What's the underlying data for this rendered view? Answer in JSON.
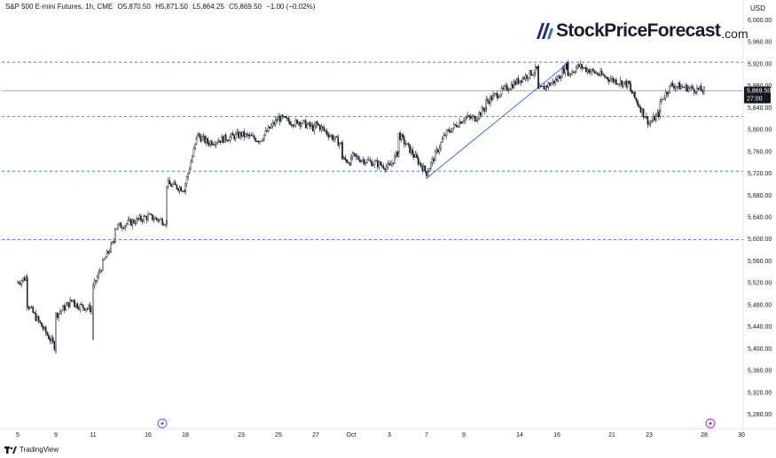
{
  "header": {
    "symbol": "S&P 500 E-mini Futures, 1h, CME",
    "open": "O5,870.50",
    "high": "H5,871.50",
    "low": "L5,864.25",
    "close": "C5,869.50",
    "change": "−1.00 (−0.02%)"
  },
  "brand": {
    "name": "StockPriceForecast",
    "domain": ".com"
  },
  "footer": {
    "brand": "TradingView"
  },
  "colors": {
    "candle": "#131722",
    "hline": "#2962ff",
    "trendline": "#2962ff",
    "price_tag": "#131722",
    "last_line": "#9598a1"
  },
  "icons": {
    "event_1": "lightning-event-icon",
    "event_2": "lightning-event-icon"
  },
  "chart_data": {
    "type": "line",
    "currency": "USD",
    "ylim": [
      5260,
      6020
    ],
    "y_ticks": [
      "6,000.00",
      "5,960.00",
      "5,920.00",
      "5,880.00",
      "5,840.00",
      "5,800.00",
      "5,760.00",
      "5,720.00",
      "5,680.00",
      "5,640.00",
      "5,600.00",
      "5,560.00",
      "5,520.00",
      "5,480.00",
      "5,440.00",
      "5,400.00",
      "5,360.00",
      "5,320.00",
      "5,280.00"
    ],
    "x_ticks": [
      "5",
      "9",
      "11",
      "16",
      "18",
      "23",
      "25",
      "27",
      "Oct",
      "3",
      "7",
      "9",
      "14",
      "16",
      "21",
      "23",
      "28",
      "30"
    ],
    "price_tag": {
      "value": "5,869.50",
      "countdown": "27:00",
      "price": 5869.5
    },
    "horizontal_levels": [
      5922,
      5823,
      5723,
      5598
    ],
    "trendline": {
      "from": {
        "x": "Oct 7",
        "y": 5710
      },
      "to": {
        "x": "Oct 17",
        "y": 5920
      }
    },
    "series": [
      {
        "x": [
          "Sep 5",
          "Sep 6",
          "Sep 6",
          "Sep 9",
          "Sep 9",
          "Sep 10",
          "Sep 10",
          "Sep 11",
          "Sep 11",
          "Sep 11",
          "Sep 12",
          "Sep 13",
          "Sep 13",
          "Sep 16",
          "Sep 17",
          "Sep 17",
          "Sep 18",
          "Sep 18",
          "Sep 19",
          "Sep 19",
          "Sep 20",
          "Sep 23",
          "Sep 24",
          "Sep 25",
          "Sep 26",
          "Sep 26",
          "Sep 27",
          "Sep 27",
          "Sep 30",
          "Sep 30",
          "Oct 1",
          "Oct 1",
          "Oct 2",
          "Oct 3",
          "Oct 4",
          "Oct 4",
          "Oct 7",
          "Oct 8",
          "Oct 9",
          "Oct 10",
          "Oct 11",
          "Oct 11",
          "Oct 14",
          "Oct 15",
          "Oct 15",
          "Oct 16",
          "Oct 17",
          "Oct 17",
          "Oct 18",
          "Oct 21",
          "Oct 22",
          "Oct 22",
          "Oct 23",
          "Oct 24",
          "Oct 24",
          "Oct 25",
          "Oct 28",
          "Oct 28"
        ],
        "y": [
          5520,
          5530,
          5480,
          5400,
          5460,
          5490,
          5480,
          5470,
          5420,
          5510,
          5560,
          5600,
          5620,
          5640,
          5630,
          5700,
          5690,
          5700,
          5780,
          5790,
          5775,
          5790,
          5780,
          5820,
          5810,
          5815,
          5800,
          5810,
          5770,
          5745,
          5740,
          5750,
          5740,
          5730,
          5760,
          5790,
          5720,
          5790,
          5820,
          5820,
          5840,
          5850,
          5890,
          5910,
          5870,
          5890,
          5920,
          5900,
          5915,
          5890,
          5880,
          5870,
          5810,
          5830,
          5850,
          5880,
          5870,
          5869.5
        ]
      }
    ]
  }
}
